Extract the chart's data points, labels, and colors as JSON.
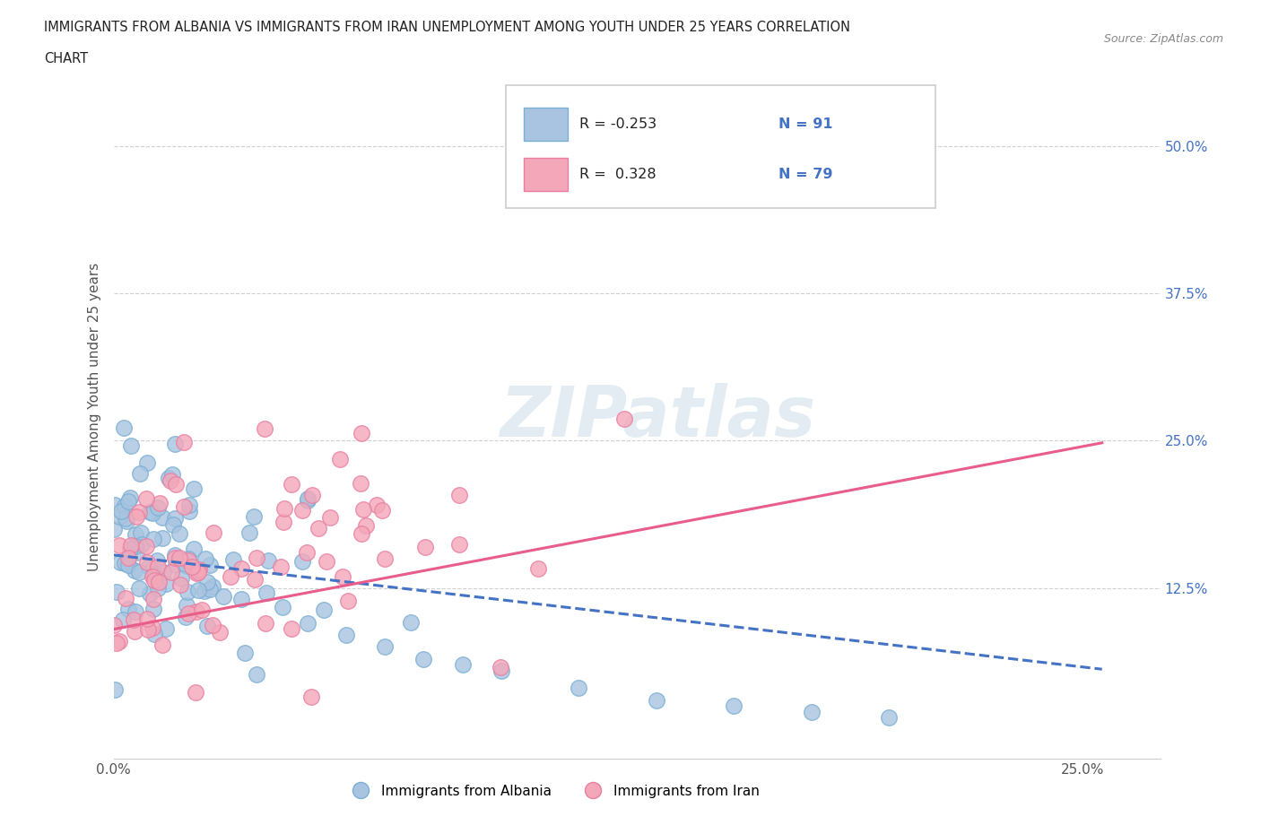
{
  "title_line1": "IMMIGRANTS FROM ALBANIA VS IMMIGRANTS FROM IRAN UNEMPLOYMENT AMONG YOUTH UNDER 25 YEARS CORRELATION",
  "title_line2": "CHART",
  "source_text": "Source: ZipAtlas.com",
  "ylabel": "Unemployment Among Youth under 25 years",
  "xlim": [
    0.0,
    0.27
  ],
  "ylim": [
    -0.02,
    0.56
  ],
  "yticks": [
    0.0,
    0.125,
    0.25,
    0.375,
    0.5
  ],
  "ytick_labels_right": [
    "",
    "12.5%",
    "25.0%",
    "37.5%",
    "50.0%"
  ],
  "xticks": [
    0.0,
    0.05,
    0.1,
    0.15,
    0.2,
    0.25
  ],
  "xtick_labels": [
    "0.0%",
    "",
    "",
    "",
    "",
    "25.0%"
  ],
  "albania_color": "#a8c4e0",
  "iran_color": "#f4a7b9",
  "albania_edge": "#7bafd4",
  "iran_edge": "#e87fa0",
  "trend_albania_color": "#4472c4",
  "trend_iran_color": "#e85d8a",
  "R_albania": -0.253,
  "N_albania": 91,
  "R_iran": 0.328,
  "N_iran": 79,
  "legend_text_color": "#222222",
  "legend_N_color": "#4472c4",
  "watermark": "ZIPatlas",
  "background_color": "#ffffff",
  "grid_color": "#d0d0d0"
}
